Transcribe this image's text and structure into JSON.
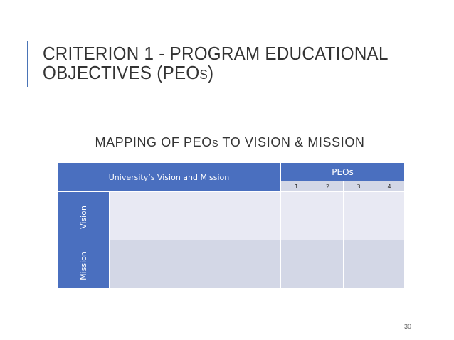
{
  "slide": {
    "title_main": "CRITERION 1 - PROGRAM EDUCATIONAL OBJECTIVES (PEO",
    "title_sub": "S",
    "title_end": ")",
    "subtitle_main": "MAPPING OF PEO",
    "subtitle_sub": "S",
    "subtitle_end": " TO VISION & MISSION",
    "page_number": "30",
    "accent_color": "#4a74b6"
  },
  "table": {
    "header_left": "University’s Vision and Mission",
    "header_peos": "PEOs",
    "peo_numbers": [
      "1",
      "2",
      "3",
      "4"
    ],
    "rows": [
      {
        "label": "Vision"
      },
      {
        "label": "Mission"
      }
    ],
    "header_color": "#4a6fbf",
    "light_cell_color": "#e8e9f3",
    "medium_cell_color": "#d3d7e6"
  }
}
